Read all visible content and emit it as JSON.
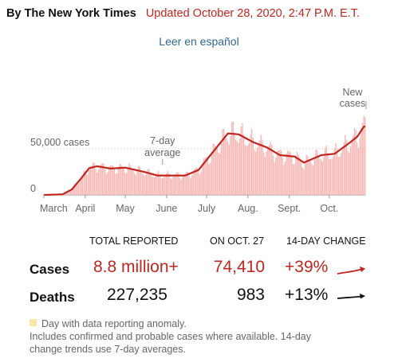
{
  "byline": {
    "org": "By The New York Times",
    "updated": "Updated October 28, 2020, 2:47 P.M. E.T."
  },
  "spanish_link": "Leer en español",
  "chart_data": {
    "type": "bar",
    "x_labels": [
      "March",
      "April",
      "May",
      "June",
      "July",
      "Aug.",
      "Sept.",
      "Oct."
    ],
    "y_ticks": [
      {
        "value": 0,
        "label": "0"
      },
      {
        "value": 50000,
        "label": "50,000 cases"
      }
    ],
    "ylim": [
      0,
      80000
    ],
    "annotations": {
      "seven_day_avg": [
        "7-day",
        "average"
      ],
      "new_cases": [
        "New",
        "cases"
      ]
    },
    "colors": {
      "bars": "#f6b8b5",
      "avg_line": "#c0251f",
      "anomaly": "#f9e7a6"
    },
    "seven_day_average_keypoints": [
      {
        "date": "2020-03-01",
        "value": 0
      },
      {
        "date": "2020-03-15",
        "value": 600
      },
      {
        "date": "2020-03-22",
        "value": 6000
      },
      {
        "date": "2020-03-29",
        "value": 18000
      },
      {
        "date": "2020-04-04",
        "value": 29000
      },
      {
        "date": "2020-04-10",
        "value": 31000
      },
      {
        "date": "2020-04-20",
        "value": 28500
      },
      {
        "date": "2020-05-01",
        "value": 29500
      },
      {
        "date": "2020-05-15",
        "value": 25000
      },
      {
        "date": "2020-05-25",
        "value": 21000
      },
      {
        "date": "2020-06-05",
        "value": 21000
      },
      {
        "date": "2020-06-15",
        "value": 21000
      },
      {
        "date": "2020-06-25",
        "value": 27000
      },
      {
        "date": "2020-07-05",
        "value": 45000
      },
      {
        "date": "2020-07-17",
        "value": 66500
      },
      {
        "date": "2020-07-25",
        "value": 65500
      },
      {
        "date": "2020-08-05",
        "value": 57000
      },
      {
        "date": "2020-08-15",
        "value": 51500
      },
      {
        "date": "2020-08-25",
        "value": 43000
      },
      {
        "date": "2020-09-05",
        "value": 41500
      },
      {
        "date": "2020-09-12",
        "value": 35000
      },
      {
        "date": "2020-09-25",
        "value": 43000
      },
      {
        "date": "2020-10-05",
        "value": 44500
      },
      {
        "date": "2020-10-15",
        "value": 55000
      },
      {
        "date": "2020-10-22",
        "value": 63000
      },
      {
        "date": "2020-10-27",
        "value": 74000
      }
    ]
  },
  "table": {
    "headers": {
      "total": "TOTAL REPORTED",
      "on_date": "ON OCT. 27",
      "change": "14-DAY CHANGE"
    },
    "rows": [
      {
        "label": "Cases",
        "total": "8.8 million+",
        "on_date": "74,410",
        "change": "+39%",
        "color": "#c0251f"
      },
      {
        "label": "Deaths",
        "total": "227,235",
        "on_date": "983",
        "change": "+13%",
        "color": "#121212"
      }
    ]
  },
  "footnotes": {
    "anomaly": "Day with data reporting anomaly.",
    "note_line1": "Includes confirmed and probable cases where available. 14-day",
    "note_line2": "change trends use 7-day averages."
  }
}
